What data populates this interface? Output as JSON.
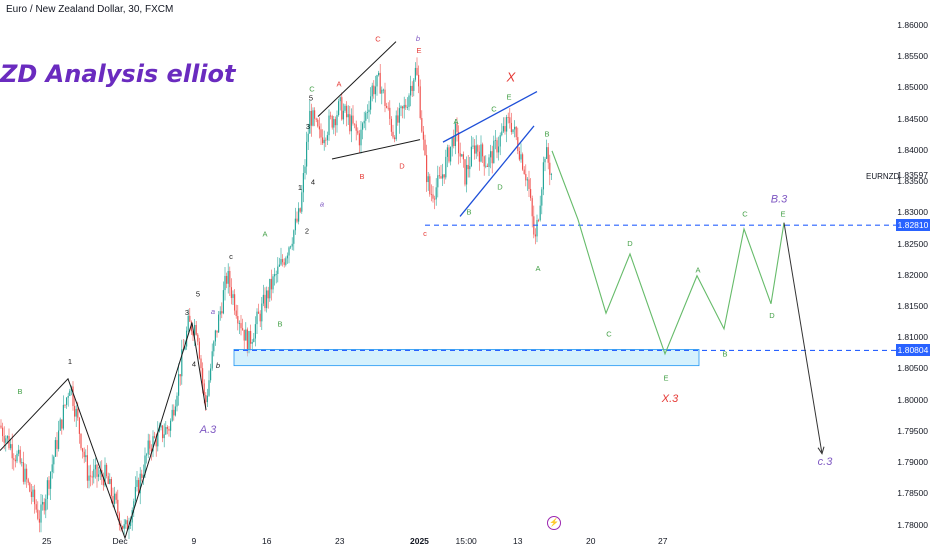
{
  "header": {
    "symbol_title": "Euro / New Zealand Dollar, 30, FXCM"
  },
  "watermark": "ZD Analysis elliot",
  "symbol_label": "EURNZD",
  "colors": {
    "up": "#26a69a",
    "down": "#ef5350",
    "wave": "#1a1a1a",
    "projection": "#66bb6a",
    "dashed": "#2962ff",
    "zone": "#2196f3",
    "label_purple": "#7e57c2",
    "label_red": "#e53935",
    "label_green": "#43a047"
  },
  "chart_data": {
    "type": "line",
    "title": "Euro / New Zealand Dollar, 30, FXCM",
    "ylim": [
      1.777,
      1.862
    ],
    "y_ticks": [
      "1.86000",
      "1.85500",
      "1.85000",
      "1.84500",
      "1.84000",
      "1.83500",
      "1.83000",
      "1.82500",
      "1.82000",
      "1.81500",
      "1.81000",
      "1.80500",
      "1.80000",
      "1.79500",
      "1.79000",
      "1.78500",
      "1.78000"
    ],
    "x_ticks": [
      "25",
      "Dec",
      "9",
      "16",
      "23",
      "2025",
      "15:00",
      "13",
      "20",
      "27"
    ],
    "price_tags": [
      {
        "label": "1.82810",
        "value": 1.8281
      },
      {
        "label": "1.80804",
        "value": 1.80804
      }
    ],
    "last_price": {
      "label": "1.83597",
      "value": 1.83597
    },
    "price_path": [
      [
        0,
        1.796
      ],
      [
        20,
        1.79
      ],
      [
        40,
        1.781
      ],
      [
        70,
        1.803
      ],
      [
        88,
        1.788
      ],
      [
        105,
        1.788
      ],
      [
        125,
        1.779
      ],
      [
        150,
        1.793
      ],
      [
        170,
        1.796
      ],
      [
        188,
        1.812
      ],
      [
        197,
        1.812
      ],
      [
        205,
        1.799
      ],
      [
        215,
        1.81
      ],
      [
        227,
        1.82
      ],
      [
        238,
        1.814
      ],
      [
        248,
        1.809
      ],
      [
        270,
        1.818
      ],
      [
        282,
        1.822
      ],
      [
        300,
        1.83
      ],
      [
        310,
        1.846
      ],
      [
        320,
        1.842
      ],
      [
        340,
        1.847
      ],
      [
        360,
        1.842
      ],
      [
        372,
        1.85
      ],
      [
        380,
        1.851
      ],
      [
        393,
        1.843
      ],
      [
        405,
        1.847
      ],
      [
        415,
        1.853
      ],
      [
        418,
        1.851
      ],
      [
        425,
        1.838
      ],
      [
        430,
        1.833
      ],
      [
        440,
        1.835
      ],
      [
        455,
        1.843
      ],
      [
        465,
        1.836
      ],
      [
        475,
        1.841
      ],
      [
        488,
        1.838
      ],
      [
        500,
        1.842
      ],
      [
        510,
        1.845
      ],
      [
        520,
        1.84
      ],
      [
        528,
        1.835
      ],
      [
        535,
        1.825
      ],
      [
        545,
        1.84
      ],
      [
        552,
        1.836
      ]
    ],
    "projection": [
      [
        552,
        1.84
      ],
      [
        578,
        1.829
      ],
      [
        606,
        1.814
      ],
      [
        630,
        1.8235
      ],
      [
        665,
        1.8075
      ],
      [
        697,
        1.82
      ],
      [
        724,
        1.8115
      ],
      [
        744,
        1.8275
      ],
      [
        771,
        1.8155
      ],
      [
        784,
        1.8285
      ],
      [
        822,
        1.7915
      ]
    ],
    "wave_lines": [
      [
        [
          0,
          1.792
        ],
        [
          68,
          1.8035
        ],
        [
          125,
          1.778
        ],
        [
          192,
          1.8125
        ],
        [
          206,
          1.7985
        ]
      ],
      [
        [
          318,
          1.8455
        ],
        [
          396,
          1.8575
        ]
      ],
      [
        [
          332,
          1.8387
        ],
        [
          420,
          1.8418
        ]
      ],
      [
        [
          443,
          1.8414
        ],
        [
          537,
          1.8495
        ]
      ],
      [
        [
          460,
          1.8295
        ],
        [
          534,
          1.844
        ]
      ]
    ],
    "demand_zone": {
      "y_top": 1.8082,
      "y_bottom": 1.8056,
      "x0": 234,
      "x1": 699
    },
    "wave_labels": [
      {
        "text": "B",
        "x": 20,
        "y": 1.8011,
        "color": "label_green"
      },
      {
        "text": "1",
        "x": 70,
        "y": 1.8059,
        "color": "wave"
      },
      {
        "text": "3",
        "x": 187,
        "y": 1.8137,
        "color": "wave"
      },
      {
        "text": "5",
        "x": 198,
        "y": 1.8167,
        "color": "wave"
      },
      {
        "text": "4",
        "x": 194,
        "y": 1.8055,
        "color": "wave"
      },
      {
        "text": "a",
        "x": 213,
        "y": 1.8139,
        "color": "label_purple"
      },
      {
        "text": "b",
        "x": 218,
        "y": 1.8052,
        "color": "wave"
      },
      {
        "text": "c",
        "x": 231,
        "y": 1.8227,
        "color": "wave"
      },
      {
        "text": "A.3",
        "x": 208,
        "y": 1.7948,
        "color": "label_purple"
      },
      {
        "text": "A",
        "x": 265,
        "y": 1.8263,
        "color": "label_green"
      },
      {
        "text": "B",
        "x": 280,
        "y": 1.8119,
        "color": "label_green"
      },
      {
        "text": "2",
        "x": 307,
        "y": 1.8268,
        "color": "wave"
      },
      {
        "text": "1",
        "x": 300,
        "y": 1.8337,
        "color": "wave"
      },
      {
        "text": "4",
        "x": 313,
        "y": 1.8346,
        "color": "wave"
      },
      {
        "text": "a",
        "x": 322,
        "y": 1.8311,
        "color": "label_purple"
      },
      {
        "text": "3",
        "x": 308,
        "y": 1.8435,
        "color": "wave"
      },
      {
        "text": "5",
        "x": 311,
        "y": 1.8481,
        "color": "wave"
      },
      {
        "text": "C",
        "x": 312,
        "y": 1.8495,
        "color": "label_green"
      },
      {
        "text": "A",
        "x": 339,
        "y": 1.8503,
        "color": "label_red"
      },
      {
        "text": "B",
        "x": 362,
        "y": 1.8355,
        "color": "label_red"
      },
      {
        "text": "C",
        "x": 378,
        "y": 1.8575,
        "color": "label_red"
      },
      {
        "text": "D",
        "x": 402,
        "y": 1.8372,
        "color": "label_red"
      },
      {
        "text": "b",
        "x": 418,
        "y": 1.8576,
        "color": "label_purple"
      },
      {
        "text": "E",
        "x": 419,
        "y": 1.8557,
        "color": "label_red"
      },
      {
        "text": "c",
        "x": 425,
        "y": 1.8264,
        "color": "label_red"
      },
      {
        "text": "A",
        "x": 456,
        "y": 1.8443,
        "color": "label_green"
      },
      {
        "text": "B",
        "x": 469,
        "y": 1.8298,
        "color": "label_green"
      },
      {
        "text": "C",
        "x": 494,
        "y": 1.8463,
        "color": "label_green"
      },
      {
        "text": "D",
        "x": 500,
        "y": 1.8338,
        "color": "label_green"
      },
      {
        "text": "E",
        "x": 509,
        "y": 1.8482,
        "color": "label_green"
      },
      {
        "text": "X",
        "x": 511,
        "y": 1.8511,
        "color": "label_red"
      },
      {
        "text": "A",
        "x": 538,
        "y": 1.8208,
        "color": "label_green"
      },
      {
        "text": "B",
        "x": 547,
        "y": 1.8423,
        "color": "label_green"
      },
      {
        "text": "C",
        "x": 609,
        "y": 1.8103,
        "color": "label_green"
      },
      {
        "text": "D",
        "x": 630,
        "y": 1.8248,
        "color": "label_green"
      },
      {
        "text": "E",
        "x": 666,
        "y": 1.8032,
        "color": "label_green"
      },
      {
        "text": "X.3",
        "x": 670,
        "y": 1.7998,
        "color": "label_red"
      },
      {
        "text": "A",
        "x": 698,
        "y": 1.8205,
        "color": "label_green"
      },
      {
        "text": "B",
        "x": 725,
        "y": 1.8071,
        "color": "label_green"
      },
      {
        "text": "C",
        "x": 745,
        "y": 1.8295,
        "color": "label_green"
      },
      {
        "text": "D",
        "x": 772,
        "y": 1.8132,
        "color": "label_green"
      },
      {
        "text": "B.3",
        "x": 779,
        "y": 1.8317,
        "color": "label_purple"
      },
      {
        "text": "E",
        "x": 783,
        "y": 1.8295,
        "color": "label_green"
      },
      {
        "text": "c.3",
        "x": 825,
        "y": 1.7897,
        "color": "label_purple"
      }
    ]
  }
}
